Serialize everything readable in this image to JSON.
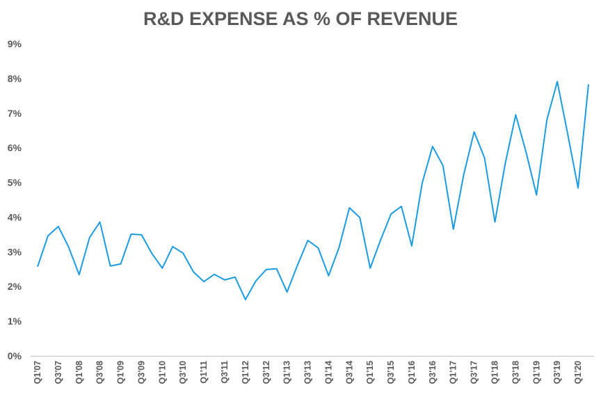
{
  "chart_data": {
    "type": "line",
    "title": "R&D EXPENSE AS % OF REVENUE",
    "xlabel": "",
    "ylabel": "",
    "ylim": [
      0,
      9
    ],
    "y_tick_labels": [
      "0%",
      "1%",
      "2%",
      "3%",
      "4%",
      "5%",
      "6%",
      "7%",
      "8%",
      "9%"
    ],
    "y_ticks": [
      0,
      1,
      2,
      3,
      4,
      5,
      6,
      7,
      8,
      9
    ],
    "x_tick_labels": [
      "Q1'07",
      "Q3'07",
      "Q1'08",
      "Q3'08",
      "Q1'09",
      "Q3'09",
      "Q1'10",
      "Q3'10",
      "Q1'11",
      "Q3'11",
      "Q1'12",
      "Q3'12",
      "Q1'13",
      "Q3'13",
      "Q1'14",
      "Q3'14",
      "Q1'15",
      "Q3'15",
      "Q1'16",
      "Q3'16",
      "Q1'17",
      "Q3'17",
      "Q1'18",
      "Q3'18",
      "Q1'19",
      "Q3'19",
      "Q1'20"
    ],
    "grid": false,
    "color": "#1a9be2",
    "series": [
      {
        "x": [
          "Q1'07",
          "Q2'07",
          "Q3'07",
          "Q4'07",
          "Q1'08",
          "Q2'08",
          "Q3'08",
          "Q4'08",
          "Q1'09",
          "Q2'09",
          "Q3'09",
          "Q4'09",
          "Q1'10",
          "Q2'10",
          "Q3'10",
          "Q4'10",
          "Q1'11",
          "Q2'11",
          "Q3'11",
          "Q4'11",
          "Q1'12",
          "Q2'12",
          "Q3'12",
          "Q4'12",
          "Q1'13",
          "Q2'13",
          "Q3'13",
          "Q4'13",
          "Q1'14",
          "Q2'14",
          "Q3'14",
          "Q4'14",
          "Q1'15",
          "Q2'15",
          "Q3'15",
          "Q4'15",
          "Q1'16",
          "Q2'16",
          "Q3'16",
          "Q4'16",
          "Q1'17",
          "Q2'17",
          "Q3'17",
          "Q4'17",
          "Q1'18",
          "Q2'18",
          "Q3'18",
          "Q4'18",
          "Q1'19",
          "Q2'19",
          "Q3'19",
          "Q4'19",
          "Q1'20",
          "Q2'20"
        ],
        "values": [
          2.57,
          3.46,
          3.73,
          3.13,
          2.34,
          3.41,
          3.86,
          2.59,
          2.65,
          3.51,
          3.49,
          2.95,
          2.53,
          3.15,
          2.96,
          2.42,
          2.14,
          2.35,
          2.19,
          2.27,
          1.62,
          2.16,
          2.49,
          2.51,
          1.84,
          2.61,
          3.33,
          3.11,
          2.31,
          3.12,
          4.27,
          3.99,
          2.53,
          3.34,
          4.09,
          4.31,
          3.17,
          4.98,
          6.04,
          5.49,
          3.65,
          5.23,
          6.46,
          5.71,
          3.86,
          5.56,
          6.95,
          5.87,
          4.64,
          6.81,
          7.91,
          6.4,
          4.84,
          7.83
        ]
      }
    ]
  }
}
